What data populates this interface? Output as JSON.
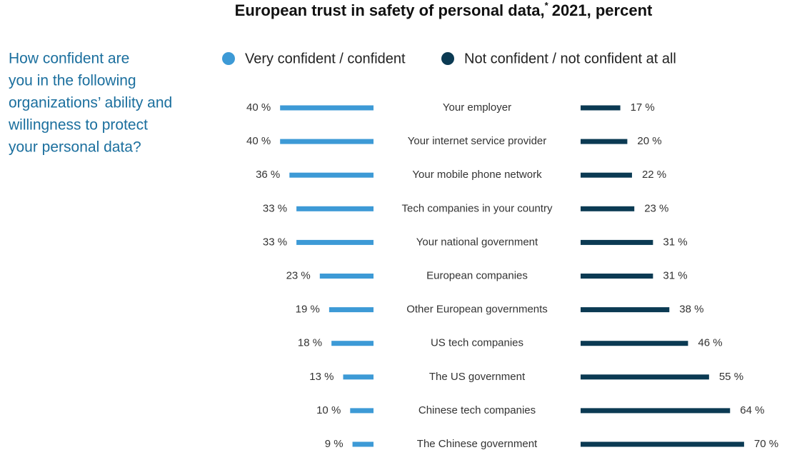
{
  "chart_data": {
    "type": "diverging-bar",
    "title": "European trust in safety of personal data,",
    "title_note": "*",
    "title_rest": "2021, percent",
    "question_lines": [
      "How confident are",
      "you in the following",
      "organizations’ ability and",
      "willingness to protect",
      "your personal data?"
    ],
    "categories": [
      "Your employer",
      "Your internet service provider",
      "Your mobile phone network",
      "Tech companies in your country",
      "Your national government",
      "European companies",
      "Other European governments",
      "US tech companies",
      "The US government",
      "Chinese tech companies",
      "The Chinese government"
    ],
    "series": [
      {
        "name": "Very confident / confident",
        "color": "#3d9ad6",
        "side": "left",
        "values": [
          40,
          40,
          36,
          33,
          33,
          23,
          19,
          18,
          13,
          10,
          9
        ],
        "value_labels": [
          "40 %",
          "40 %",
          "36 %",
          "33 %",
          "33 %",
          "23 %",
          "19 %",
          "18 %",
          "13 %",
          "10 %",
          "9 %"
        ]
      },
      {
        "name": "Not confident / not confident at all",
        "color": "#0b3a53",
        "side": "right",
        "values": [
          17,
          20,
          22,
          23,
          31,
          31,
          38,
          46,
          55,
          64,
          70
        ],
        "value_labels": [
          "17 %",
          "20 %",
          "22 %",
          "23 %",
          "31 %",
          "31 %",
          "38 %",
          "46 %",
          "55 %",
          "64 %",
          "70 %"
        ]
      }
    ]
  }
}
